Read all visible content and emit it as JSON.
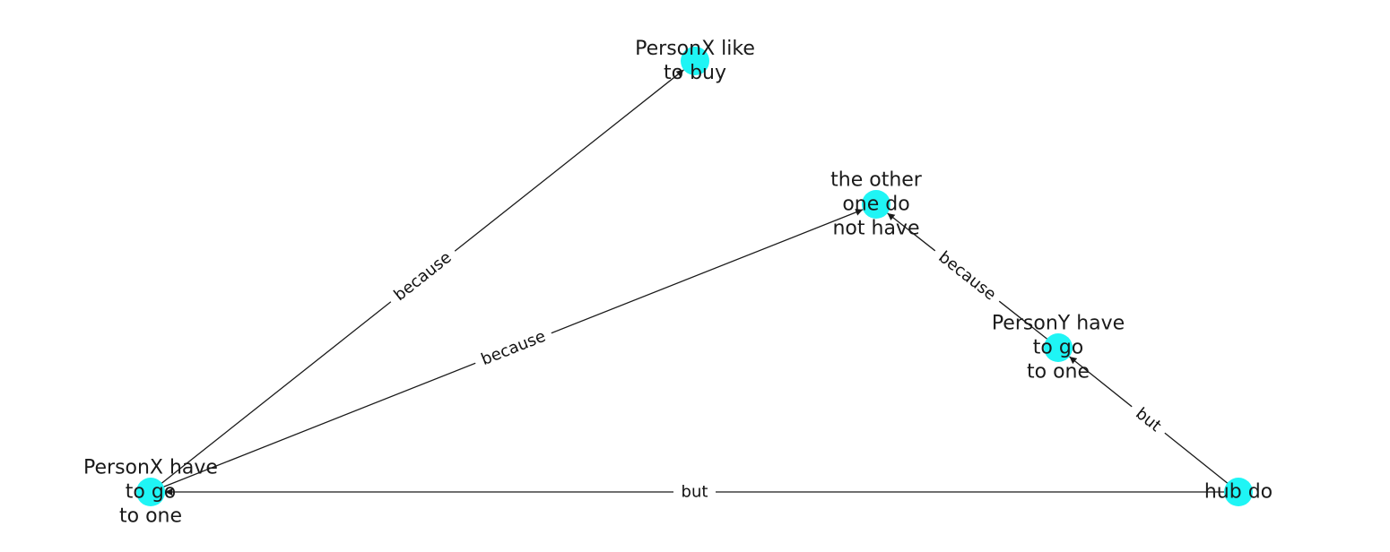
{
  "colors": {
    "node_fill": "#1ff5f5",
    "edge_stroke": "#1a1a1a",
    "text": "#1a1a1a",
    "background": "#ffffff"
  },
  "nodes": [
    {
      "id": "n_like",
      "lines": [
        "PersonX like",
        "to buy"
      ]
    },
    {
      "id": "n_other",
      "lines": [
        "the other",
        "one do",
        "not have"
      ]
    },
    {
      "id": "n_py",
      "lines": [
        "PersonY have",
        "to go",
        "to one"
      ]
    },
    {
      "id": "n_px",
      "lines": [
        "PersonX have",
        "to go",
        "to one"
      ]
    },
    {
      "id": "n_hub",
      "lines": [
        "hub do"
      ]
    }
  ],
  "edges": [
    {
      "id": "e1",
      "from": "n_px",
      "to": "n_like",
      "label": "because"
    },
    {
      "id": "e2",
      "from": "n_px",
      "to": "n_other",
      "label": "because"
    },
    {
      "id": "e3",
      "from": "n_py",
      "to": "n_other",
      "label": "because"
    },
    {
      "id": "e4",
      "from": "n_hub",
      "to": "n_py",
      "label": "but"
    },
    {
      "id": "e5",
      "from": "n_hub",
      "to": "n_px",
      "label": "but"
    }
  ]
}
